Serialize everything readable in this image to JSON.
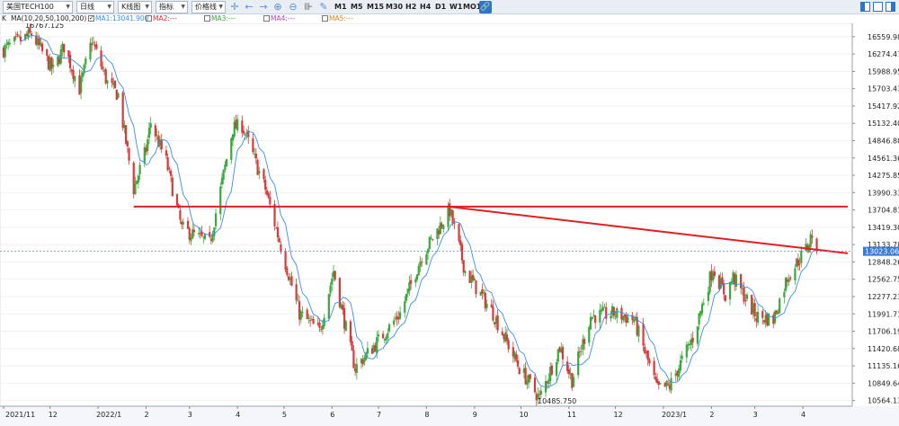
{
  "toolbar": {
    "symbol": "美国TECH100",
    "period": "日线",
    "chart_kind": "K线图",
    "indicator": "指标",
    "price_line": "价格线",
    "timeframes": [
      "M1",
      "M5",
      "M15",
      "M30",
      "H2",
      "H4",
      "D1",
      "W1",
      "MO1"
    ],
    "icons": [
      "crosshair-icon",
      "back-arrow-icon",
      "forward-arrow-icon",
      "zoom-in-icon",
      "zoom-out-icon",
      "bar-spacing-icon",
      "pencil-icon"
    ]
  },
  "ma_legend": {
    "k": "K",
    "params": "MA(10,20,50,100,200)",
    "ma1": "MA1:13041.900",
    "ma2": "MA2:---",
    "ma3": "MA3:---",
    "ma4": "MA4:---",
    "ma5": "MA5:---",
    "ma1_color": "#3a8ee6",
    "ma2_color": "#e03030",
    "ma3_color": "#3aa83a",
    "ma4_color": "#c040c0",
    "ma5_color": "#e08020"
  },
  "chart_data": {
    "type": "candlestick",
    "symbol": "美国TECH100",
    "timeframe": "D1",
    "y_ticks": [
      "16559.98",
      "16274.47",
      "15988.95",
      "15703.43",
      "15417.92",
      "15132.40",
      "14846.88",
      "14561.36",
      "14275.85",
      "13990.33",
      "13704.81",
      "13419.30",
      "13133.78",
      "12848.26",
      "12562.75",
      "12277.23",
      "11991.71",
      "11706.195",
      "11420.683",
      "11135.165",
      "10849.64",
      "10564.13"
    ],
    "ylim": [
      10470,
      16780
    ],
    "x_ticks": [
      "2021/11",
      "12",
      "2022/1",
      "2",
      "3",
      "4",
      "5",
      "6",
      "7",
      "8",
      "9",
      "10",
      "11",
      "12",
      "2023/1",
      "2",
      "3",
      "4"
    ],
    "current_price": "13023.06",
    "high_label": "16767.125",
    "low_label": "10485.750",
    "ma1_last": 13041.9,
    "anchors": [
      {
        "date": "2021-11-01",
        "price": 16350
      },
      {
        "date": "2021-11-19",
        "price": 16600
      },
      {
        "date": "2021-12-03",
        "price": 16000
      },
      {
        "date": "2021-12-10",
        "price": 16400
      },
      {
        "date": "2021-12-20",
        "price": 15700
      },
      {
        "date": "2021-12-28",
        "price": 16500
      },
      {
        "date": "2022-01-07",
        "price": 15800
      },
      {
        "date": "2022-01-14",
        "price": 15600
      },
      {
        "date": "2022-01-24",
        "price": 14050
      },
      {
        "date": "2022-02-01",
        "price": 14700
      },
      {
        "date": "2022-02-04",
        "price": 15150
      },
      {
        "date": "2022-02-14",
        "price": 14500
      },
      {
        "date": "2022-02-24",
        "price": 13400
      },
      {
        "date": "2022-03-14",
        "price": 13150
      },
      {
        "date": "2022-03-29",
        "price": 15050
      },
      {
        "date": "2022-04-04",
        "price": 15100
      },
      {
        "date": "2022-04-19",
        "price": 14050
      },
      {
        "date": "2022-04-28",
        "price": 13200
      },
      {
        "date": "2022-05-11",
        "price": 12000
      },
      {
        "date": "2022-05-24",
        "price": 11700
      },
      {
        "date": "2022-06-02",
        "price": 12700
      },
      {
        "date": "2022-06-13",
        "price": 11400
      },
      {
        "date": "2022-06-16",
        "price": 11100
      },
      {
        "date": "2022-07-01",
        "price": 11550
      },
      {
        "date": "2022-07-15",
        "price": 12000
      },
      {
        "date": "2022-07-29",
        "price": 12950
      },
      {
        "date": "2022-08-16",
        "price": 13700
      },
      {
        "date": "2022-08-26",
        "price": 12700
      },
      {
        "date": "2022-09-13",
        "price": 12000
      },
      {
        "date": "2022-09-30",
        "price": 11100
      },
      {
        "date": "2022-10-13",
        "price": 10600
      },
      {
        "date": "2022-10-26",
        "price": 11450
      },
      {
        "date": "2022-11-03",
        "price": 10900
      },
      {
        "date": "2022-11-15",
        "price": 11950
      },
      {
        "date": "2022-11-30",
        "price": 12000
      },
      {
        "date": "2022-12-13",
        "price": 11900
      },
      {
        "date": "2022-12-28",
        "price": 10750
      },
      {
        "date": "2023-01-05",
        "price": 10800
      },
      {
        "date": "2023-01-20",
        "price": 11600
      },
      {
        "date": "2023-02-02",
        "price": 12750
      },
      {
        "date": "2023-02-10",
        "price": 12300
      },
      {
        "date": "2023-02-15",
        "price": 12600
      },
      {
        "date": "2023-03-02",
        "price": 11950
      },
      {
        "date": "2023-03-13",
        "price": 11900
      },
      {
        "date": "2023-03-22",
        "price": 12600
      },
      {
        "date": "2023-04-04",
        "price": 13100
      },
      {
        "date": "2023-04-07",
        "price": 13320
      },
      {
        "date": "2023-04-10",
        "price": 13023
      }
    ],
    "trendlines": [
      {
        "name": "horizontal",
        "x1": "2022-01-24",
        "y1": 13760,
        "x2": "2023-04-30",
        "y2": 13760,
        "color": "#e02020"
      },
      {
        "name": "descending",
        "x1": "2022-08-15",
        "y1": 13760,
        "x2": "2023-04-30",
        "y2": 12990,
        "color": "#e02020"
      }
    ]
  }
}
